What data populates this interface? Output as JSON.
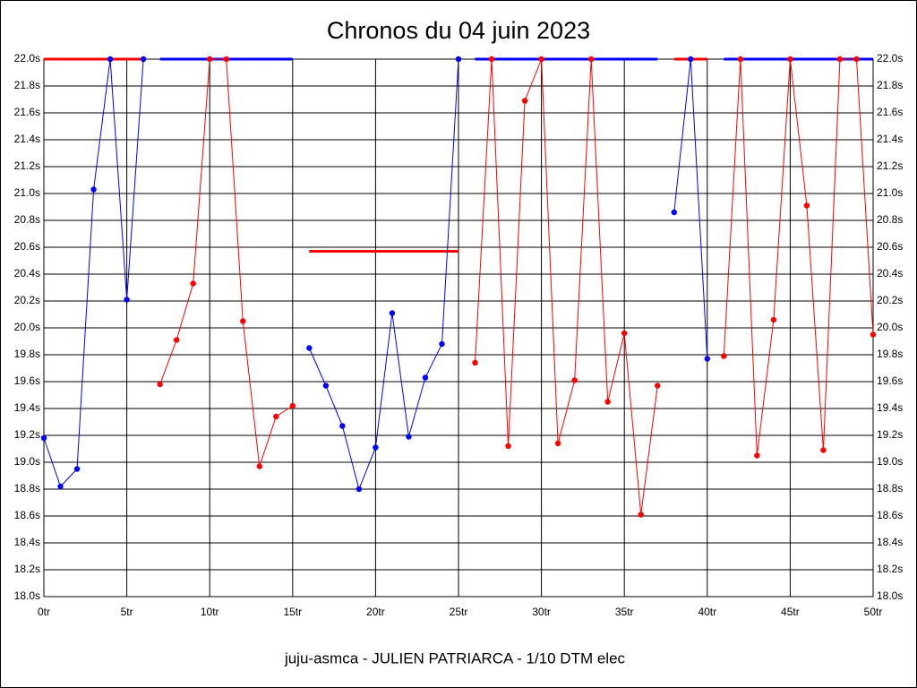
{
  "chart_data": {
    "type": "line",
    "title": "Chronos du 04 juin 2023",
    "footer": "juju-asmca - JULIEN PATRIARCA - 1/10 DTM elec",
    "xlim": [
      0,
      50
    ],
    "ylim": [
      18.0,
      22.0
    ],
    "grid": true,
    "xticks": [
      {
        "value": 0,
        "label": "0tr"
      },
      {
        "value": 5,
        "label": "5tr"
      },
      {
        "value": 10,
        "label": "10tr"
      },
      {
        "value": 15,
        "label": "15tr"
      },
      {
        "value": 20,
        "label": "20tr"
      },
      {
        "value": 25,
        "label": "25tr"
      },
      {
        "value": 30,
        "label": "30tr"
      },
      {
        "value": 35,
        "label": "35tr"
      },
      {
        "value": 40,
        "label": "40tr"
      },
      {
        "value": 45,
        "label": "45tr"
      },
      {
        "value": 50,
        "label": "50tr"
      }
    ],
    "yticks": [
      {
        "value": 18.0,
        "label": "18.0s"
      },
      {
        "value": 18.2,
        "label": "18.2s"
      },
      {
        "value": 18.4,
        "label": "18.4s"
      },
      {
        "value": 18.6,
        "label": "18.6s"
      },
      {
        "value": 18.8,
        "label": "18.8s"
      },
      {
        "value": 19.0,
        "label": "19.0s"
      },
      {
        "value": 19.2,
        "label": "19.2s"
      },
      {
        "value": 19.4,
        "label": "19.4s"
      },
      {
        "value": 19.6,
        "label": "19.6s"
      },
      {
        "value": 19.8,
        "label": "19.8s"
      },
      {
        "value": 20.0,
        "label": "20.0s"
      },
      {
        "value": 20.2,
        "label": "20.2s"
      },
      {
        "value": 20.4,
        "label": "20.4s"
      },
      {
        "value": 20.6,
        "label": "20.6s"
      },
      {
        "value": 20.8,
        "label": "20.8s"
      },
      {
        "value": 21.0,
        "label": "21.0s"
      },
      {
        "value": 21.2,
        "label": "21.2s"
      },
      {
        "value": 21.4,
        "label": "21.4s"
      },
      {
        "value": 21.6,
        "label": "21.6s"
      },
      {
        "value": 21.8,
        "label": "21.8s"
      },
      {
        "value": 22.0,
        "label": "22.0s"
      }
    ],
    "series": [
      {
        "color": "#0000ff",
        "x": [
          0,
          1,
          2,
          3,
          4,
          5,
          6
        ],
        "values": [
          19.18,
          18.82,
          18.95,
          21.03,
          22.0,
          20.21,
          22.0
        ]
      },
      {
        "color": "#ff0000",
        "x": [
          7,
          8,
          9,
          10,
          11,
          12,
          13,
          14,
          15
        ],
        "values": [
          19.58,
          19.91,
          20.33,
          22.0,
          22.0,
          20.05,
          18.97,
          19.34,
          19.42
        ]
      },
      {
        "color": "#0000ff",
        "x": [
          16,
          17,
          18,
          19,
          20,
          21,
          22,
          23,
          24,
          25
        ],
        "values": [
          19.85,
          19.57,
          19.27,
          18.8,
          19.11,
          20.11,
          19.19,
          19.63,
          19.88,
          22.0
        ]
      },
      {
        "color": "#ff0000",
        "x": [
          26,
          27,
          28,
          29,
          30,
          31,
          32,
          33,
          34,
          35,
          36,
          37
        ],
        "values": [
          19.74,
          22.0,
          19.12,
          21.69,
          22.0,
          19.14,
          19.61,
          22.0,
          19.45,
          19.96,
          18.61,
          19.57
        ]
      },
      {
        "color": "#0000ff",
        "x": [
          38,
          39,
          40
        ],
        "values": [
          20.86,
          22.0,
          19.77
        ]
      },
      {
        "color": "#ff0000",
        "x": [
          41,
          42,
          43,
          44,
          45,
          46,
          47,
          48,
          49,
          50
        ],
        "values": [
          19.79,
          22.0,
          19.05,
          20.06,
          22.0,
          20.91,
          19.09,
          22.0,
          22.0,
          19.95
        ]
      }
    ],
    "lines": [
      {
        "color": "#ff0000",
        "x": [
          0,
          6
        ],
        "y": 22.0
      },
      {
        "color": "#0000ff",
        "x": [
          7,
          15
        ],
        "y": 22.0
      },
      {
        "color": "#ff0000",
        "x": [
          16,
          25
        ],
        "y": 20.57
      },
      {
        "color": "#0000ff",
        "x": [
          26,
          37
        ],
        "y": 22.0
      },
      {
        "color": "#ff0000",
        "x": [
          38,
          40
        ],
        "y": 22.0
      },
      {
        "color": "#0000ff",
        "x": [
          41,
          50
        ],
        "y": 22.0
      }
    ]
  }
}
